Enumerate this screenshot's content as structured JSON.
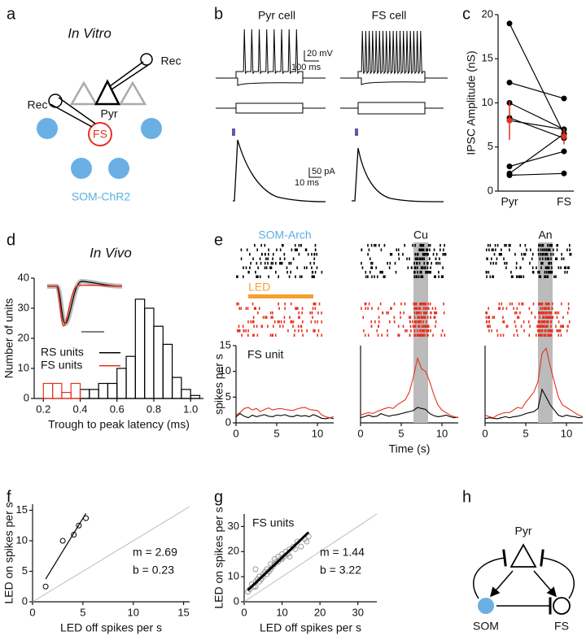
{
  "panel_labels": [
    "a",
    "b",
    "c",
    "d",
    "e",
    "f",
    "g",
    "h"
  ],
  "diagrams": {
    "a": {
      "title": "In Vitro",
      "rec_right": "Rec",
      "rec_left": "Rec",
      "pyr": "Pyr",
      "fs": "FS",
      "som": "SOM-ChR2"
    },
    "b": {
      "pyr_title": "Pyr cell",
      "fs_title": "FS cell",
      "volt_scale": "20 mV",
      "time_scale": "100 ms",
      "curr_scale": "50 pA",
      "time_scale2": "10 ms"
    },
    "h": {
      "pyr": "Pyr",
      "som": "SOM",
      "fs": "FS"
    }
  },
  "chart_data": [
    {
      "type": "paired",
      "ylabel": "IPSC Amplitude (nS)",
      "categories": [
        "Pyr",
        "FS"
      ],
      "series": [
        {
          "color": "#000000",
          "values": [
            19,
            6.5
          ]
        },
        {
          "color": "#000000",
          "values": [
            12.3,
            10.5
          ]
        },
        {
          "color": "#000000",
          "values": [
            10,
            7
          ]
        },
        {
          "color": "#000000",
          "values": [
            8.3,
            6
          ]
        },
        {
          "color": "#000000",
          "values": [
            8,
            7
          ]
        },
        {
          "color": "#000000",
          "values": [
            2.8,
            4.5
          ]
        },
        {
          "color": "#000000",
          "values": [
            2,
            6.5
          ]
        },
        {
          "color": "#000000",
          "values": [
            1.8,
            2
          ]
        }
      ],
      "mean": {
        "color": "#e8301f",
        "values": [
          8,
          6.2
        ],
        "errors": [
          2.2,
          0.9
        ]
      },
      "ylim": [
        0,
        20
      ],
      "yticks": [
        0,
        5,
        10,
        15,
        20
      ]
    },
    {
      "type": "histogram",
      "title": "In Vivo",
      "xlabel": "Trough to peak latency (ms)",
      "ylabel": "Number of units",
      "bins": [
        0.2,
        0.25,
        0.3,
        0.35,
        0.4,
        0.45,
        0.5,
        0.55,
        0.6,
        0.65,
        0.7,
        0.75,
        0.8,
        0.85,
        0.9,
        0.95,
        1.0,
        1.05
      ],
      "series": [
        {
          "name": "RS units",
          "color": "#000000",
          "values": [
            0,
            0,
            0,
            0,
            3,
            3,
            5,
            5,
            10,
            14,
            33,
            30,
            24,
            18,
            7,
            3,
            1
          ]
        },
        {
          "name": "FS units",
          "color": "#e8301f",
          "values": [
            5,
            5,
            2,
            5,
            0,
            0,
            0,
            0,
            0,
            0,
            0,
            0,
            0,
            0,
            0,
            0,
            0
          ]
        }
      ],
      "legend": "center left",
      "xlim": [
        0.15,
        1.07
      ],
      "xticks": [
        0.2,
        0.4,
        0.6,
        0.8,
        {
          "value": 1,
          "label": "1.0"
        }
      ],
      "ylim": [
        0,
        40
      ],
      "yticks": [
        0,
        10,
        20,
        30,
        40
      ]
    },
    {
      "type": "line",
      "title": "SOM-Arch",
      "title_color": "#5aaee0",
      "annotation": "FS unit",
      "ylabel": "spikes per s",
      "stim": {
        "label": "LED",
        "color": "#f5a030",
        "range": [
          1.5,
          9.5
        ]
      },
      "x": [
        0,
        0.5,
        1,
        1.5,
        2,
        2.5,
        3,
        3.5,
        4,
        4.5,
        5,
        5.5,
        6,
        6.5,
        7,
        7.5,
        8,
        8.5,
        9,
        9.5,
        10,
        10.5,
        11,
        11.5,
        12
      ],
      "series": [
        {
          "color": "#000000",
          "values": [
            1.2,
            1.8,
            1.3,
            1.0,
            1.5,
            1.2,
            1.4,
            1.6,
            1.3,
            1.2,
            1.5,
            1.4,
            1.6,
            1.3,
            1.2,
            1.5,
            1.3,
            1.4,
            1.2,
            1.6,
            1.3,
            0.9,
            0.8,
            1.0,
            0.8
          ]
        },
        {
          "color": "#e8301f",
          "values": [
            1.5,
            2.0,
            2.8,
            3.0,
            2.5,
            2.8,
            2.2,
            2.6,
            2.9,
            2.5,
            2.7,
            2.8,
            2.6,
            2.5,
            2.4,
            2.7,
            2.9,
            3.0,
            2.6,
            2.5,
            2.4,
            1.6,
            1.2,
            1.0,
            1.2
          ]
        }
      ],
      "xlim": [
        0,
        12
      ],
      "xticks": [
        0,
        5,
        10
      ],
      "ylim": [
        0,
        15
      ],
      "yticks": [
        0,
        5,
        10,
        15
      ]
    },
    {
      "type": "line",
      "title": "Cu",
      "xlabel": "Time (s)",
      "shade": [
        6.5,
        8.3
      ],
      "x": [
        0,
        0.5,
        1,
        1.5,
        2,
        2.5,
        3,
        3.5,
        4,
        4.5,
        5,
        5.5,
        6,
        6.5,
        7,
        7.5,
        8,
        8.5,
        9,
        9.5,
        10,
        10.5,
        11,
        11.5,
        12
      ],
      "series": [
        {
          "color": "#000000",
          "values": [
            1.0,
            1.2,
            1.5,
            1.2,
            1.3,
            1.8,
            1.5,
            1.3,
            1.5,
            1.6,
            1.8,
            2.0,
            2.2,
            2.4,
            3.0,
            2.8,
            2.6,
            1.8,
            1.4,
            1.2,
            1.3,
            1.5,
            1.2,
            1.0,
            1.1
          ]
        },
        {
          "color": "#e8301f",
          "values": [
            1.5,
            1.8,
            2.0,
            1.8,
            2.2,
            2.5,
            2.8,
            3.0,
            2.8,
            3.5,
            4.0,
            4.5,
            6.0,
            9.0,
            12.5,
            10.5,
            10.0,
            8.0,
            5.5,
            3.5,
            2.5,
            2.0,
            1.5,
            1.2,
            1.0
          ]
        }
      ],
      "xlim": [
        0,
        12
      ],
      "xticks": [
        0,
        5,
        10
      ],
      "ylim": [
        0,
        15
      ]
    },
    {
      "type": "line",
      "title": "An",
      "shade": [
        6.5,
        8.3
      ],
      "x": [
        0,
        0.5,
        1,
        1.5,
        2,
        2.5,
        3,
        3.5,
        4,
        4.5,
        5,
        5.5,
        6,
        6.5,
        7,
        7.5,
        8,
        8.5,
        9,
        9.5,
        10,
        10.5,
        11,
        11.5,
        12
      ],
      "series": [
        {
          "color": "#000000",
          "values": [
            0.8,
            1.0,
            0.9,
            0.8,
            1.0,
            1.2,
            1.0,
            1.2,
            1.3,
            1.5,
            1.8,
            2.0,
            2.2,
            2.8,
            6.5,
            5.0,
            3.5,
            2.5,
            1.5,
            1.2,
            1.5,
            1.3,
            1.2,
            1.0,
            1.1
          ]
        },
        {
          "color": "#e8301f",
          "values": [
            1.5,
            1.2,
            1.0,
            1.5,
            1.8,
            2.0,
            2.0,
            2.5,
            3.0,
            2.8,
            4.0,
            5.0,
            6.0,
            8.0,
            13.5,
            14.5,
            11.0,
            8.0,
            5.0,
            3.5,
            3.0,
            2.5,
            2.0,
            1.5,
            1.2
          ]
        }
      ],
      "xlim": [
        0,
        12
      ],
      "xticks": [
        0,
        5,
        10
      ],
      "ylim": [
        0,
        15
      ]
    },
    {
      "type": "scatter",
      "xlabel": "LED off spikes per s",
      "ylabel": "LED on spikes per s",
      "color": "#000000",
      "x": [
        1.3,
        3,
        4.1,
        4.6,
        5.3
      ],
      "values": [
        2.5,
        10,
        11,
        12.5,
        13.7
      ],
      "fit": {
        "slope": 2.69,
        "intercept": 0.23
      },
      "annotations": [
        "m = 2.69",
        "b = 0.23"
      ],
      "identity": true,
      "xlim": [
        0,
        15.6
      ],
      "xticks": [
        0,
        5,
        10,
        15
      ],
      "ylim": [
        0,
        16
      ],
      "yticks": [
        0,
        5,
        10,
        15
      ]
    },
    {
      "type": "scatter",
      "title": "FS units",
      "xlabel": "LED off spikes per s",
      "ylabel": "LED on spikes per s",
      "color": "#999999",
      "x": [
        1,
        1.5,
        2,
        2.5,
        3,
        3,
        3.5,
        4,
        4,
        4.5,
        5,
        5,
        5.5,
        6,
        6,
        6.5,
        7,
        7,
        7.5,
        8,
        8,
        8.5,
        9,
        9,
        9.5,
        10,
        10,
        10.5,
        11,
        11.5,
        12,
        12,
        13,
        13.5,
        14,
        15,
        16,
        16.5,
        17,
        3
      ],
      "values": [
        4,
        5,
        7,
        6,
        8,
        6,
        9,
        8,
        10,
        9,
        11,
        10,
        12,
        11,
        13,
        12,
        13,
        15,
        14,
        15,
        17,
        16,
        16,
        18,
        17,
        19,
        17,
        18,
        20,
        19,
        21,
        18,
        22,
        21,
        24,
        22,
        25,
        24,
        26,
        13
      ],
      "fit": {
        "slope": 1.44,
        "intercept": 3.22
      },
      "annotations": [
        "m = 1.44",
        "b = 3.22"
      ],
      "identity": true,
      "xlim": [
        0,
        35
      ],
      "xticks": [
        0,
        10,
        20,
        30
      ],
      "ylim": [
        0,
        35
      ],
      "yticks": [
        0,
        10,
        20,
        30
      ]
    }
  ]
}
